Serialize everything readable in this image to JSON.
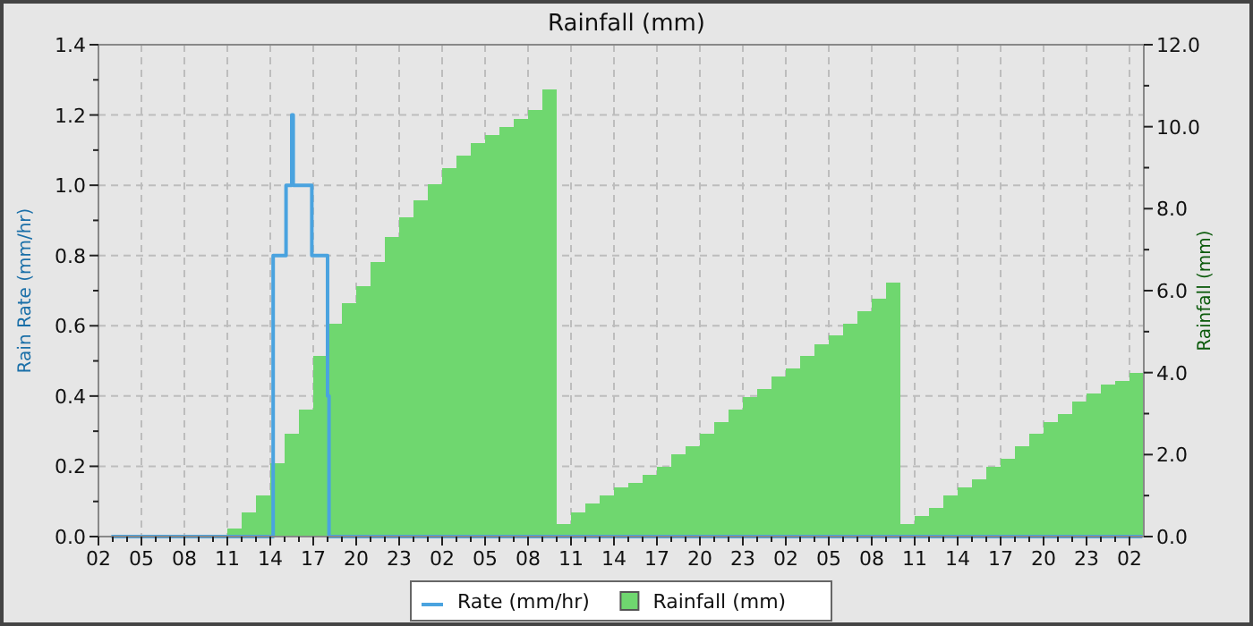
{
  "chart_data": {
    "type": "bar",
    "title": "Rainfall (mm)",
    "ylabel": "Rain Rate (mm/hr)",
    "y2label": "Rainfall (mm)",
    "xlim": [
      "--01-01T02:00",
      "--01-04T03:00"
    ],
    "xticks": [
      {
        "value": "--01-01T02:00",
        "label": "02"
      },
      {
        "value": "--01-01T03:00",
        "label": null
      },
      {
        "value": "--01-01T04:00",
        "label": null
      },
      {
        "value": "--01-01T05:00",
        "label": "05"
      },
      {
        "value": "--01-01T06:00",
        "label": null
      },
      {
        "value": "--01-01T07:00",
        "label": null
      },
      {
        "value": "--01-01T08:00",
        "label": "08"
      },
      {
        "value": "--01-01T09:00",
        "label": null
      },
      {
        "value": "--01-01T10:00",
        "label": null
      },
      {
        "value": "--01-01T11:00",
        "label": "11"
      },
      {
        "value": "--01-01T12:00",
        "label": null
      },
      {
        "value": "--01-01T13:00",
        "label": null
      },
      {
        "value": "--01-01T14:00",
        "label": "14"
      },
      {
        "value": "--01-01T15:00",
        "label": null
      },
      {
        "value": "--01-01T16:00",
        "label": null
      },
      {
        "value": "--01-01T17:00",
        "label": "17"
      },
      {
        "value": "--01-01T18:00",
        "label": null
      },
      {
        "value": "--01-01T19:00",
        "label": null
      },
      {
        "value": "--01-01T20:00",
        "label": "20"
      },
      {
        "value": "--01-01T21:00",
        "label": null
      },
      {
        "value": "--01-01T22:00",
        "label": null
      },
      {
        "value": "--01-01T23:00",
        "label": "23"
      },
      {
        "value": "--01-02T00:00",
        "label": null
      },
      {
        "value": "--01-02T01:00",
        "label": null
      },
      {
        "value": "--01-02T02:00",
        "label": "02"
      },
      {
        "value": "--01-02T03:00",
        "label": null
      },
      {
        "value": "--01-02T04:00",
        "label": null
      },
      {
        "value": "--01-02T05:00",
        "label": "05"
      },
      {
        "value": "--01-02T06:00",
        "label": null
      },
      {
        "value": "--01-02T07:00",
        "label": null
      },
      {
        "value": "--01-02T08:00",
        "label": "08"
      },
      {
        "value": "--01-02T09:00",
        "label": null
      },
      {
        "value": "--01-02T10:00",
        "label": null
      },
      {
        "value": "--01-02T11:00",
        "label": "11"
      },
      {
        "value": "--01-02T12:00",
        "label": null
      },
      {
        "value": "--01-02T13:00",
        "label": null
      },
      {
        "value": "--01-02T14:00",
        "label": "14"
      },
      {
        "value": "--01-02T15:00",
        "label": null
      },
      {
        "value": "--01-02T16:00",
        "label": null
      },
      {
        "value": "--01-02T17:00",
        "label": "17"
      },
      {
        "value": "--01-02T18:00",
        "label": null
      },
      {
        "value": "--01-02T19:00",
        "label": null
      },
      {
        "value": "--01-02T20:00",
        "label": "20"
      },
      {
        "value": "--01-02T21:00",
        "label": null
      },
      {
        "value": "--01-02T22:00",
        "label": null
      },
      {
        "value": "--01-02T23:00",
        "label": "23"
      },
      {
        "value": "--01-03T00:00",
        "label": null
      },
      {
        "value": "--01-03T01:00",
        "label": null
      },
      {
        "value": "--01-03T02:00",
        "label": "02"
      },
      {
        "value": "--01-03T03:00",
        "label": null
      },
      {
        "value": "--01-03T04:00",
        "label": null
      },
      {
        "value": "--01-03T05:00",
        "label": "05"
      },
      {
        "value": "--01-03T06:00",
        "label": null
      },
      {
        "value": "--01-03T07:00",
        "label": null
      },
      {
        "value": "--01-03T08:00",
        "label": "08"
      },
      {
        "value": "--01-03T09:00",
        "label": null
      },
      {
        "value": "--01-03T10:00",
        "label": null
      },
      {
        "value": "--01-03T11:00",
        "label": "11"
      },
      {
        "value": "--01-03T12:00",
        "label": null
      },
      {
        "value": "--01-03T13:00",
        "label": null
      },
      {
        "value": "--01-03T14:00",
        "label": "14"
      },
      {
        "value": "--01-03T15:00",
        "label": null
      },
      {
        "value": "--01-03T16:00",
        "label": null
      },
      {
        "value": "--01-03T17:00",
        "label": "17"
      },
      {
        "value": "--01-03T18:00",
        "label": null
      },
      {
        "value": "--01-03T19:00",
        "label": null
      },
      {
        "value": "--01-03T20:00",
        "label": "20"
      },
      {
        "value": "--01-03T21:00",
        "label": null
      },
      {
        "value": "--01-03T22:00",
        "label": null
      },
      {
        "value": "--01-03T23:00",
        "label": "23"
      },
      {
        "value": "--01-04T00:00",
        "label": null
      },
      {
        "value": "--01-04T01:00",
        "label": null
      },
      {
        "value": "--01-04T02:00",
        "label": "02"
      }
    ],
    "ylim": [
      0,
      1.4
    ],
    "yticks": [
      {
        "value": 0,
        "label": "0.0"
      },
      {
        "value": 0.1,
        "label": null
      },
      {
        "value": 0.2,
        "label": "0.2"
      },
      {
        "value": 0.3,
        "label": null
      },
      {
        "value": 0.4,
        "label": "0.4"
      },
      {
        "value": 0.5,
        "label": null
      },
      {
        "value": 0.6,
        "label": "0.6"
      },
      {
        "value": 0.7,
        "label": null
      },
      {
        "value": 0.8,
        "label": "0.8"
      },
      {
        "value": 0.9,
        "label": null
      },
      {
        "value": 1.0,
        "label": "1.0"
      },
      {
        "value": 1.1,
        "label": null
      },
      {
        "value": 1.2,
        "label": "1.2"
      },
      {
        "value": 1.3,
        "label": null
      },
      {
        "value": 1.4,
        "label": "1.4"
      }
    ],
    "y2lim": [
      0,
      12
    ],
    "y2ticks": [
      {
        "value": 0,
        "label": "0.0"
      },
      {
        "value": 1,
        "label": null
      },
      {
        "value": 2,
        "label": "2.0"
      },
      {
        "value": 3,
        "label": null
      },
      {
        "value": 4,
        "label": "4.0"
      },
      {
        "value": 5,
        "label": null
      },
      {
        "value": 6,
        "label": "6.0"
      },
      {
        "value": 7,
        "label": null
      },
      {
        "value": 8,
        "label": "8.0"
      },
      {
        "value": 9,
        "label": null
      },
      {
        "value": 10,
        "label": "10.0"
      },
      {
        "value": 11,
        "label": null
      },
      {
        "value": 12,
        "label": "12.0"
      }
    ],
    "grid": true,
    "legend": "bottom",
    "series": [
      {
        "name": "Rate (mm/hr)",
        "type": "step",
        "color": "#4aa3df",
        "x": [
          "--01-01T02:54",
          "--01-01T14:12",
          "--01-01T15:06",
          "--01-01T15:30",
          "--01-01T15:36",
          "--01-01T16:54",
          "--01-01T18:00",
          "--01-01T18:06",
          "--01-04T02:54"
        ],
        "values": [
          0,
          0.8,
          1.0,
          1.2,
          1.0,
          0.8,
          0.4,
          0,
          0
        ]
      },
      {
        "name": "Rainfall (mm)",
        "axis": "y2",
        "color": "#6fd76f",
        "x": [
          "--01-01T11:30",
          "--01-01T12:30",
          "--01-01T13:30",
          "--01-01T14:30",
          "--01-01T15:30",
          "--01-01T16:30",
          "--01-01T17:30",
          "--01-01T18:30",
          "--01-01T19:30",
          "--01-01T20:30",
          "--01-01T21:30",
          "--01-01T22:30",
          "--01-01T23:30",
          "--01-02T00:30",
          "--01-02T01:30",
          "--01-02T02:30",
          "--01-02T03:30",
          "--01-02T04:30",
          "--01-02T05:30",
          "--01-02T06:30",
          "--01-02T07:30",
          "--01-02T08:30",
          "--01-02T09:30",
          "--01-02T10:30",
          "--01-02T11:30",
          "--01-02T12:30",
          "--01-02T13:30",
          "--01-02T14:30",
          "--01-02T15:30",
          "--01-02T16:30",
          "--01-02T17:30",
          "--01-02T18:30",
          "--01-02T19:30",
          "--01-02T20:30",
          "--01-02T21:30",
          "--01-02T22:30",
          "--01-02T23:30",
          "--01-03T00:30",
          "--01-03T01:30",
          "--01-03T02:30",
          "--01-03T03:30",
          "--01-03T04:30",
          "--01-03T05:30",
          "--01-03T06:30",
          "--01-03T07:30",
          "--01-03T08:30",
          "--01-03T09:30",
          "--01-03T10:30",
          "--01-03T11:30",
          "--01-03T12:30",
          "--01-03T13:30",
          "--01-03T14:30",
          "--01-03T15:30",
          "--01-03T16:30",
          "--01-03T17:30",
          "--01-03T18:30",
          "--01-03T19:30",
          "--01-03T20:30",
          "--01-03T21:30",
          "--01-03T22:30",
          "--01-03T23:30",
          "--01-04T00:30",
          "--01-04T01:30",
          "--01-04T02:30"
        ],
        "values": [
          0.2,
          0.6,
          1.0,
          1.8,
          2.5,
          3.1,
          4.4,
          5.2,
          5.7,
          6.1,
          6.7,
          7.3,
          7.8,
          8.2,
          8.6,
          9.0,
          9.3,
          9.6,
          9.8,
          10.0,
          10.2,
          10.4,
          10.9,
          0.3,
          0.6,
          0.8,
          1.0,
          1.2,
          1.3,
          1.5,
          1.7,
          2.0,
          2.2,
          2.5,
          2.8,
          3.1,
          3.4,
          3.6,
          3.9,
          4.1,
          4.4,
          4.7,
          4.9,
          5.2,
          5.5,
          5.8,
          6.2,
          0.3,
          0.5,
          0.7,
          1.0,
          1.2,
          1.4,
          1.7,
          1.9,
          2.2,
          2.5,
          2.8,
          3.0,
          3.3,
          3.5,
          3.7,
          3.8,
          4.0
        ]
      }
    ]
  }
}
